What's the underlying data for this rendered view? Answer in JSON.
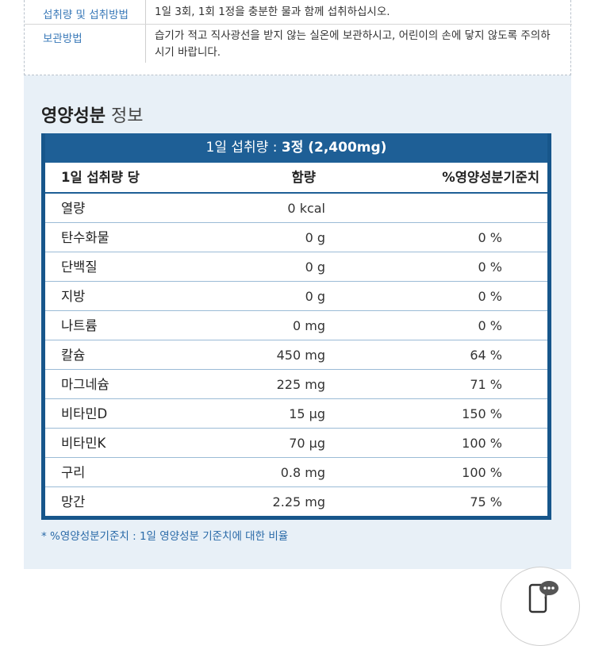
{
  "product_info": {
    "rows": [
      {
        "label": "섭취량 및 섭취방법",
        "value": "1일 3회, 1회 1정을 충분한 물과 함께 섭취하십시오."
      },
      {
        "label": "보관방법",
        "value": "습기가 적고 직사광선을 받지 않는 실온에 보관하시고, 어린이의 손에 닿지 않도록 주의하시기 바랍니다."
      }
    ]
  },
  "nutrition": {
    "heading_bold": "영양성분",
    "heading_light": "정보",
    "serving_prefix": "1일 섭취량 : ",
    "serving_bold": "3정 (2,400mg)",
    "columns": {
      "per": "1일 섭취량 당",
      "amount": "함량",
      "percent": "%영양성분기준치"
    },
    "rows": [
      {
        "name": "열량",
        "amount": "0 kcal",
        "percent": ""
      },
      {
        "name": "탄수화물",
        "amount": "0 g",
        "percent": "0 %"
      },
      {
        "name": "단백질",
        "amount": "0 g",
        "percent": "0 %"
      },
      {
        "name": "지방",
        "amount": "0 g",
        "percent": "0 %"
      },
      {
        "name": "나트륨",
        "amount": "0 mg",
        "percent": "0 %"
      },
      {
        "name": "칼슘",
        "amount": "450 mg",
        "percent": "64 %"
      },
      {
        "name": "마그네슘",
        "amount": "225 mg",
        "percent": "71 %"
      },
      {
        "name": "비타민D",
        "amount": "15 μg",
        "percent": "150 %"
      },
      {
        "name": "비타민K",
        "amount": "70 μg",
        "percent": "100 %"
      },
      {
        "name": "구리",
        "amount": "0.8 mg",
        "percent": "100 %"
      },
      {
        "name": "망간",
        "amount": "2.25 mg",
        "percent": "75 %"
      }
    ],
    "footnote": "* %영양성분기준치 : 1일 영양성분 기준치에 대한 비율"
  },
  "floating_button": {
    "icon": "phone-chat-icon"
  },
  "colors": {
    "table_border": "#17568b",
    "header_bg": "#1e5f96",
    "label_blue": "#3a79b8",
    "panel_bg": "#e8f0f7"
  }
}
